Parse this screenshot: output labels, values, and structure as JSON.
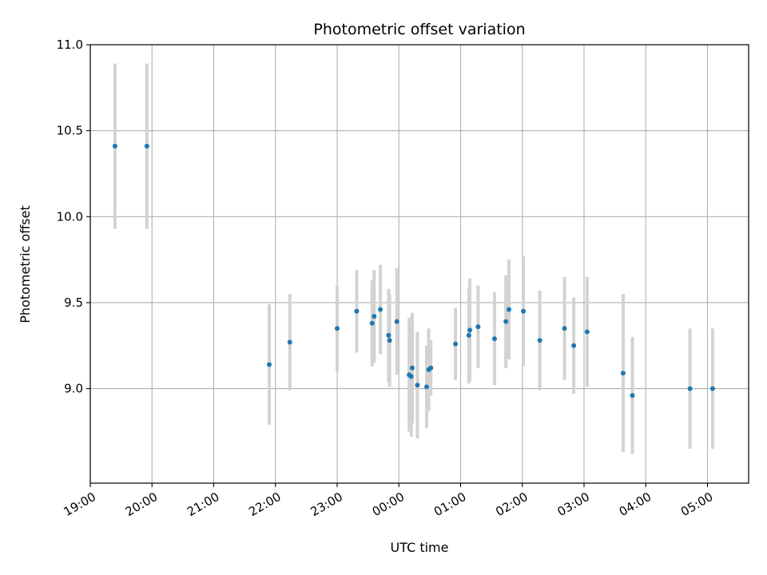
{
  "chart_data": {
    "type": "scatter",
    "title": "Photometric offset variation",
    "xlabel": "UTC time",
    "ylabel": "Photometric offset",
    "x_is_time": true,
    "xlim": [
      "19:00",
      "05:40"
    ],
    "ylim": [
      8.45,
      11.0
    ],
    "grid": true,
    "x_ticks": [
      "19:00",
      "20:00",
      "21:00",
      "22:00",
      "23:00",
      "00:00",
      "01:00",
      "02:00",
      "03:00",
      "04:00",
      "05:00"
    ],
    "y_ticks": [
      "9.0",
      "9.5",
      "10.0",
      "10.5",
      "11.0"
    ],
    "point_color": "#1f77b4",
    "errorbar_color": "#d3d3d3",
    "points": [
      {
        "t": "19:24",
        "y": 10.41,
        "err": 0.48
      },
      {
        "t": "19:55",
        "y": 10.41,
        "err": 0.48
      },
      {
        "t": "21:54",
        "y": 9.14,
        "err": 0.35
      },
      {
        "t": "22:14",
        "y": 9.27,
        "err": 0.28
      },
      {
        "t": "23:00",
        "y": 9.35,
        "err": 0.25
      },
      {
        "t": "23:19",
        "y": 9.45,
        "err": 0.24
      },
      {
        "t": "23:34",
        "y": 9.38,
        "err": 0.25
      },
      {
        "t": "23:36",
        "y": 9.42,
        "err": 0.27
      },
      {
        "t": "23:42",
        "y": 9.46,
        "err": 0.26
      },
      {
        "t": "23:50",
        "y": 9.31,
        "err": 0.27
      },
      {
        "t": "23:51",
        "y": 9.28,
        "err": 0.27
      },
      {
        "t": "23:58",
        "y": 9.39,
        "err": 0.31
      },
      {
        "t": "00:10",
        "y": 9.08,
        "err": 0.33
      },
      {
        "t": "00:12",
        "y": 9.07,
        "err": 0.35
      },
      {
        "t": "00:13",
        "y": 9.12,
        "err": 0.32
      },
      {
        "t": "00:18",
        "y": 9.02,
        "err": 0.31
      },
      {
        "t": "00:27",
        "y": 9.01,
        "err": 0.24
      },
      {
        "t": "00:29",
        "y": 9.11,
        "err": 0.24
      },
      {
        "t": "00:31",
        "y": 9.12,
        "err": 0.16
      },
      {
        "t": "00:55",
        "y": 9.26,
        "err": 0.21
      },
      {
        "t": "01:08",
        "y": 9.31,
        "err": 0.28
      },
      {
        "t": "01:09",
        "y": 9.34,
        "err": 0.3
      },
      {
        "t": "01:17",
        "y": 9.36,
        "err": 0.24
      },
      {
        "t": "01:33",
        "y": 9.29,
        "err": 0.27
      },
      {
        "t": "01:44",
        "y": 9.39,
        "err": 0.27
      },
      {
        "t": "01:47",
        "y": 9.46,
        "err": 0.29
      },
      {
        "t": "02:01",
        "y": 9.45,
        "err": 0.32
      },
      {
        "t": "02:17",
        "y": 9.28,
        "err": 0.29
      },
      {
        "t": "02:41",
        "y": 9.35,
        "err": 0.3
      },
      {
        "t": "02:50",
        "y": 9.25,
        "err": 0.28
      },
      {
        "t": "03:03",
        "y": 9.33,
        "err": 0.32
      },
      {
        "t": "03:38",
        "y": 9.09,
        "err": 0.46
      },
      {
        "t": "03:47",
        "y": 8.96,
        "err": 0.34
      },
      {
        "t": "04:43",
        "y": 9.0,
        "err": 0.35
      },
      {
        "t": "05:05",
        "y": 9.0,
        "err": 0.35
      }
    ]
  }
}
